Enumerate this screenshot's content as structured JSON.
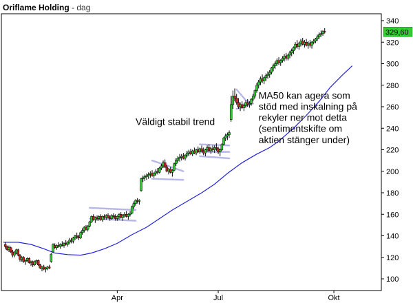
{
  "header": {
    "name": "Oriflame Holding",
    "separator": "-",
    "period": "dag"
  },
  "chart_data": {
    "type": "candlestick",
    "ylim": [
      94,
      344
    ],
    "y_ticks": [
      100,
      120,
      140,
      160,
      180,
      200,
      220,
      240,
      260,
      280,
      300,
      320,
      340
    ],
    "x_ticks": [
      {
        "label": "Apr",
        "day": 62
      },
      {
        "label": "Jul",
        "day": 117
      },
      {
        "label": "Okt",
        "day": 180
      }
    ],
    "last_price": {
      "value": 329.6,
      "label": "329,60",
      "color": "#33cc33"
    },
    "ma50": {
      "name": "MA50",
      "color": "#2222dd",
      "points": [
        [
          0,
          134
        ],
        [
          8,
          134
        ],
        [
          15,
          132
        ],
        [
          22,
          128
        ],
        [
          28,
          124
        ],
        [
          35,
          122.5
        ],
        [
          42,
          122
        ],
        [
          48,
          124
        ],
        [
          55,
          128
        ],
        [
          62,
          133
        ],
        [
          70,
          141
        ],
        [
          78,
          148
        ],
        [
          85,
          156
        ],
        [
          92,
          164
        ],
        [
          100,
          172
        ],
        [
          108,
          180
        ],
        [
          115,
          188
        ],
        [
          122,
          198
        ],
        [
          130,
          208
        ],
        [
          138,
          216
        ],
        [
          145,
          222
        ],
        [
          150,
          228
        ],
        [
          158,
          240
        ],
        [
          165,
          252
        ],
        [
          172,
          265
        ],
        [
          178,
          278
        ],
        [
          185,
          290
        ],
        [
          190,
          298
        ]
      ]
    },
    "candles": [
      [
        1,
        132,
        134,
        128,
        130
      ],
      [
        2,
        130,
        131,
        126,
        127
      ],
      [
        3,
        127,
        131,
        125,
        129
      ],
      [
        4,
        129,
        130,
        124,
        125
      ],
      [
        5,
        125,
        127,
        120,
        122
      ],
      [
        6,
        122,
        126,
        120,
        124
      ],
      [
        7,
        124,
        128,
        123,
        127
      ],
      [
        8,
        127,
        128,
        121,
        122
      ],
      [
        9,
        122,
        123,
        116,
        118
      ],
      [
        10,
        118,
        121,
        116,
        120
      ],
      [
        11,
        120,
        121,
        115,
        116
      ],
      [
        12,
        116,
        118,
        113,
        117
      ],
      [
        13,
        117,
        120,
        116,
        119
      ],
      [
        14,
        119,
        120,
        114,
        115
      ],
      [
        15,
        115,
        117,
        112,
        116
      ],
      [
        16,
        116,
        117,
        111,
        113
      ],
      [
        17,
        113,
        117,
        112,
        116
      ],
      [
        18,
        116,
        118,
        114,
        117
      ],
      [
        19,
        117,
        118,
        112,
        113
      ],
      [
        20,
        113,
        114,
        109,
        110
      ],
      [
        21,
        110,
        112,
        107,
        111
      ],
      [
        22,
        111,
        113,
        108,
        109
      ],
      [
        23,
        109,
        111,
        106,
        110
      ],
      [
        24,
        110,
        112,
        108,
        111
      ],
      [
        25,
        111,
        113,
        109,
        110
      ],
      [
        26,
        116,
        124,
        115,
        123
      ],
      [
        27,
        125,
        133,
        124,
        132
      ],
      [
        28,
        131,
        133,
        128,
        129
      ],
      [
        29,
        129,
        132,
        127,
        131
      ],
      [
        30,
        131,
        134,
        129,
        130
      ],
      [
        31,
        130,
        133,
        128,
        132
      ],
      [
        32,
        132,
        135,
        130,
        131
      ],
      [
        33,
        131,
        134,
        129,
        133
      ],
      [
        34,
        133,
        136,
        131,
        132
      ],
      [
        35,
        132,
        135,
        130,
        134
      ],
      [
        36,
        134,
        138,
        132,
        136
      ],
      [
        37,
        136,
        138,
        133,
        135
      ],
      [
        38,
        135,
        139,
        133,
        138
      ],
      [
        39,
        138,
        141,
        136,
        140
      ],
      [
        40,
        140,
        143,
        137,
        139
      ],
      [
        41,
        139,
        141,
        136,
        138
      ],
      [
        42,
        138,
        144,
        137,
        143
      ],
      [
        43,
        143,
        147,
        141,
        145
      ],
      [
        44,
        145,
        149,
        143,
        148
      ],
      [
        45,
        148,
        150,
        145,
        146
      ],
      [
        46,
        146,
        150,
        144,
        149
      ],
      [
        47,
        149,
        154,
        148,
        153
      ],
      [
        48,
        153,
        159,
        152,
        158
      ],
      [
        49,
        158,
        160,
        154,
        155
      ],
      [
        50,
        155,
        158,
        152,
        157
      ],
      [
        51,
        157,
        159,
        154,
        156
      ],
      [
        52,
        156,
        159,
        154,
        158
      ],
      [
        53,
        158,
        160,
        154,
        155
      ],
      [
        54,
        155,
        159,
        153,
        158
      ],
      [
        55,
        158,
        160,
        155,
        157
      ],
      [
        56,
        157,
        160,
        155,
        159
      ],
      [
        57,
        159,
        161,
        156,
        157
      ],
      [
        58,
        157,
        159,
        154,
        156
      ],
      [
        59,
        156,
        160,
        155,
        159
      ],
      [
        60,
        159,
        161,
        156,
        158
      ],
      [
        61,
        158,
        160,
        154,
        156
      ],
      [
        62,
        156,
        159,
        154,
        158
      ],
      [
        63,
        158,
        161,
        155,
        160
      ],
      [
        64,
        160,
        162,
        156,
        157
      ],
      [
        65,
        157,
        160,
        154,
        159
      ],
      [
        66,
        159,
        162,
        157,
        160
      ],
      [
        67,
        160,
        163,
        157,
        158
      ],
      [
        68,
        158,
        161,
        155,
        160
      ],
      [
        69,
        160,
        163,
        158,
        161
      ],
      [
        70,
        161,
        168,
        160,
        167
      ],
      [
        71,
        167,
        172,
        165,
        170
      ],
      [
        72,
        170,
        174,
        168,
        173
      ],
      [
        73,
        173,
        175,
        170,
        172
      ],
      [
        74,
        172,
        174,
        169,
        173
      ],
      [
        75,
        182,
        194,
        181,
        193
      ],
      [
        76,
        193,
        196,
        190,
        194
      ],
      [
        77,
        194,
        197,
        191,
        195
      ],
      [
        78,
        195,
        198,
        192,
        196
      ],
      [
        79,
        196,
        199,
        193,
        197
      ],
      [
        80,
        197,
        200,
        194,
        198
      ],
      [
        81,
        198,
        201,
        195,
        196
      ],
      [
        82,
        196,
        199,
        194,
        198
      ],
      [
        83,
        198,
        202,
        196,
        200
      ],
      [
        84,
        200,
        203,
        197,
        199
      ],
      [
        85,
        199,
        204,
        198,
        203
      ],
      [
        86,
        203,
        207,
        201,
        205
      ],
      [
        87,
        205,
        210,
        203,
        208
      ],
      [
        88,
        208,
        211,
        203,
        204
      ],
      [
        89,
        204,
        206,
        199,
        200
      ],
      [
        90,
        200,
        203,
        197,
        202
      ],
      [
        91,
        202,
        204,
        198,
        199
      ],
      [
        92,
        199,
        202,
        195,
        201
      ],
      [
        93,
        201,
        208,
        200,
        207
      ],
      [
        94,
        207,
        212,
        205,
        210
      ],
      [
        95,
        210,
        214,
        208,
        212
      ],
      [
        96,
        212,
        216,
        209,
        213
      ],
      [
        97,
        213,
        216,
        210,
        214
      ],
      [
        98,
        214,
        217,
        211,
        212
      ],
      [
        99,
        212,
        216,
        210,
        215
      ],
      [
        100,
        215,
        219,
        213,
        217
      ],
      [
        101,
        217,
        220,
        214,
        218
      ],
      [
        102,
        218,
        221,
        215,
        216
      ],
      [
        103,
        216,
        220,
        214,
        219
      ],
      [
        104,
        219,
        222,
        216,
        217
      ],
      [
        105,
        217,
        221,
        215,
        220
      ],
      [
        106,
        220,
        223,
        217,
        218
      ],
      [
        107,
        218,
        222,
        216,
        221
      ],
      [
        108,
        221,
        224,
        218,
        219
      ],
      [
        109,
        219,
        222,
        215,
        217
      ],
      [
        110,
        217,
        221,
        214,
        220
      ],
      [
        111,
        220,
        224,
        218,
        222
      ],
      [
        112,
        222,
        225,
        218,
        219
      ],
      [
        113,
        219,
        223,
        216,
        221
      ],
      [
        114,
        221,
        224,
        218,
        220
      ],
      [
        115,
        220,
        224,
        217,
        222
      ],
      [
        116,
        222,
        226,
        219,
        221
      ],
      [
        117,
        221,
        223,
        216,
        218
      ],
      [
        118,
        218,
        221,
        214,
        220
      ],
      [
        119,
        220,
        226,
        219,
        225
      ],
      [
        120,
        225,
        232,
        224,
        231
      ],
      [
        121,
        231,
        235,
        228,
        233
      ],
      [
        122,
        233,
        236,
        229,
        234
      ],
      [
        123,
        234,
        238,
        231,
        236
      ],
      [
        124,
        248,
        270,
        246,
        262
      ],
      [
        125,
        262,
        275,
        258,
        270
      ],
      [
        126,
        270,
        277,
        265,
        268
      ],
      [
        127,
        268,
        272,
        262,
        264
      ],
      [
        128,
        264,
        268,
        258,
        260
      ],
      [
        129,
        260,
        264,
        256,
        262
      ],
      [
        130,
        262,
        265,
        258,
        259
      ],
      [
        131,
        259,
        263,
        256,
        261
      ],
      [
        132,
        261,
        266,
        259,
        264
      ],
      [
        133,
        264,
        267,
        260,
        262
      ],
      [
        134,
        262,
        265,
        259,
        263
      ],
      [
        135,
        263,
        268,
        261,
        267
      ],
      [
        136,
        267,
        272,
        265,
        270
      ],
      [
        137,
        270,
        276,
        268,
        275
      ],
      [
        138,
        275,
        282,
        273,
        280
      ],
      [
        139,
        280,
        285,
        277,
        283
      ],
      [
        140,
        283,
        288,
        280,
        286
      ],
      [
        141,
        286,
        290,
        282,
        284
      ],
      [
        142,
        284,
        288,
        281,
        287
      ],
      [
        143,
        287,
        291,
        284,
        289
      ],
      [
        144,
        289,
        293,
        286,
        290
      ],
      [
        145,
        290,
        294,
        287,
        292
      ],
      [
        146,
        292,
        297,
        290,
        296
      ],
      [
        147,
        296,
        300,
        293,
        298
      ],
      [
        148,
        298,
        302,
        295,
        300
      ],
      [
        149,
        300,
        305,
        298,
        303
      ],
      [
        150,
        303,
        306,
        299,
        301
      ],
      [
        151,
        301,
        304,
        298,
        303
      ],
      [
        152,
        303,
        307,
        301,
        305
      ],
      [
        153,
        305,
        309,
        302,
        307
      ],
      [
        154,
        307,
        310,
        303,
        305
      ],
      [
        155,
        305,
        309,
        303,
        308
      ],
      [
        156,
        308,
        312,
        305,
        310
      ],
      [
        157,
        310,
        314,
        307,
        312
      ],
      [
        158,
        312,
        316,
        309,
        315
      ],
      [
        159,
        315,
        320,
        313,
        318
      ],
      [
        160,
        318,
        322,
        314,
        316
      ],
      [
        161,
        316,
        320,
        313,
        319
      ],
      [
        162,
        319,
        323,
        316,
        321
      ],
      [
        163,
        321,
        324,
        317,
        318
      ],
      [
        164,
        318,
        322,
        315,
        320
      ],
      [
        165,
        320,
        323,
        316,
        317
      ],
      [
        166,
        317,
        321,
        314,
        319
      ],
      [
        167,
        319,
        322,
        315,
        317
      ],
      [
        168,
        317,
        321,
        314,
        320
      ],
      [
        169,
        320,
        323,
        318,
        321
      ],
      [
        170,
        321,
        324,
        319,
        323
      ],
      [
        171,
        323,
        327,
        321,
        325
      ],
      [
        172,
        325,
        329,
        323,
        327
      ],
      [
        173,
        327,
        331,
        325,
        328
      ],
      [
        174,
        328,
        331,
        326,
        330
      ],
      [
        175,
        330,
        333,
        328,
        329.6
      ]
    ],
    "trend_lines": [
      [
        47,
        166,
        72,
        164
      ],
      [
        47,
        156,
        72,
        154
      ],
      [
        81,
        210,
        98,
        200
      ],
      [
        81,
        193,
        98,
        192
      ],
      [
        107,
        225,
        123,
        224
      ],
      [
        107,
        218,
        123,
        218
      ],
      [
        107,
        214,
        123,
        212
      ],
      [
        127,
        276,
        132,
        266
      ],
      [
        132,
        266,
        136,
        263
      ],
      [
        127,
        258,
        136,
        263
      ]
    ],
    "annotations": [
      {
        "text": "Väldigt stabil trend",
        "day": 72,
        "price": 243
      },
      {
        "text": "MA50 kan agera som",
        "day": 139,
        "price": 267.5
      },
      {
        "text": "stöd med inskalning på",
        "day": 139,
        "price": 257
      },
      {
        "text": "rekyler ner mot detta",
        "day": 139,
        "price": 247
      },
      {
        "text": "(sentimentskifte om",
        "day": 139,
        "price": 236.5
      },
      {
        "text": "aktien stänger under)",
        "day": 139,
        "price": 226
      }
    ]
  }
}
